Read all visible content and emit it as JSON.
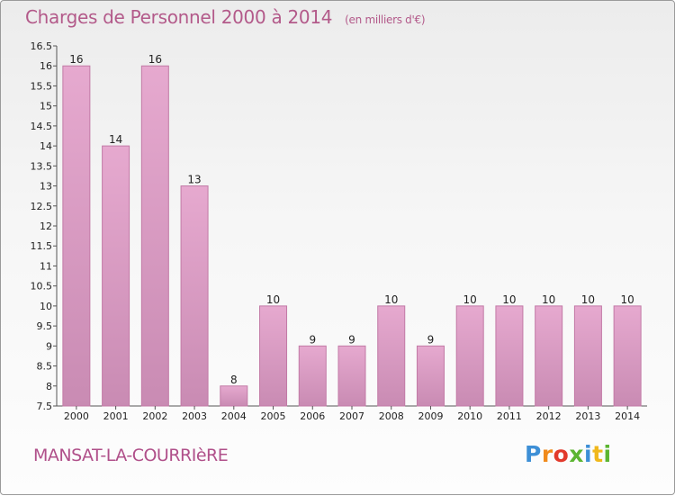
{
  "title": "Charges de Personnel 2000 à 2014",
  "subtitle": "(en milliers d'€)",
  "commune": "MANSAT-LA-COURRIèRE",
  "logo": {
    "letters": [
      "P",
      "r",
      "o",
      "x",
      "i",
      "t",
      "i"
    ],
    "colors": [
      "#3d8fd6",
      "#f08a1c",
      "#e23a2c",
      "#5cb531",
      "#3d8fd6",
      "#f0b81c",
      "#5cb531"
    ]
  },
  "colors": {
    "bar": "#dca0c4",
    "bar_edge": "#c27aa6",
    "axis": "#555555"
  },
  "chart_data": {
    "type": "bar",
    "title": "Charges de Personnel 2000 à 2014",
    "subtitle": "(en milliers d'€)",
    "xlabel": "",
    "ylabel": "",
    "categories": [
      "2000",
      "2001",
      "2002",
      "2003",
      "2004",
      "2005",
      "2006",
      "2007",
      "2008",
      "2009",
      "2010",
      "2011",
      "2012",
      "2013",
      "2014"
    ],
    "values": [
      16,
      14,
      16,
      13,
      8,
      10,
      9,
      9,
      10,
      9,
      10,
      10,
      10,
      10,
      10
    ],
    "value_labels": [
      "16",
      "14",
      "16",
      "13",
      "8",
      "10",
      "9",
      "9",
      "10",
      "9",
      "10",
      "10",
      "10",
      "10",
      "10"
    ],
    "ylim": [
      7.5,
      16.5
    ],
    "yticks": [
      "7.5",
      "8",
      "8.5",
      "9",
      "9.5",
      "10",
      "10.5",
      "11",
      "11.5",
      "12",
      "12.5",
      "13",
      "13.5",
      "14",
      "14.5",
      "15",
      "15.5",
      "16",
      "16.5"
    ],
    "grid": false,
    "legend": "none"
  }
}
